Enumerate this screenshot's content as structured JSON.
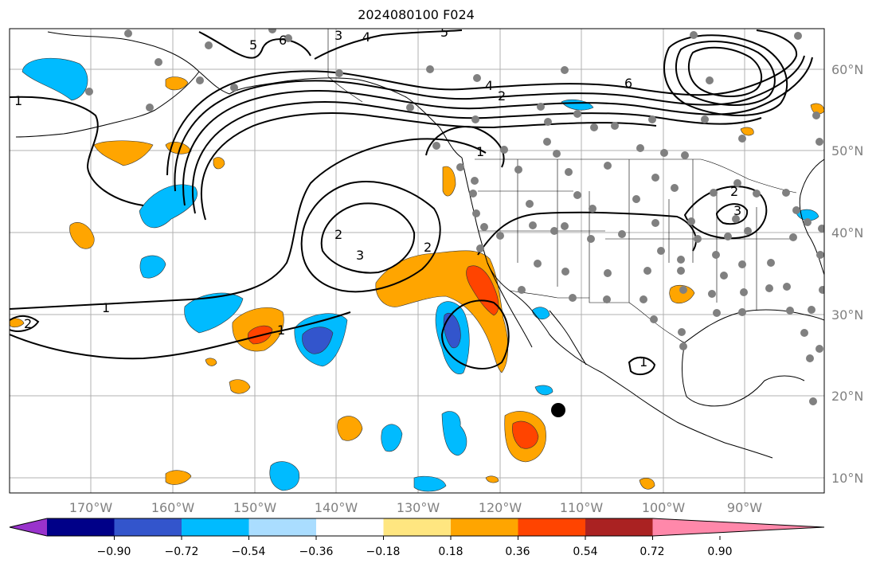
{
  "title": "2024080100 F024",
  "map": {
    "lon_labels": [
      "170°W",
      "160°W",
      "150°W",
      "140°W",
      "130°W",
      "120°W",
      "110°W",
      "100°W",
      "90°W"
    ],
    "lat_labels": [
      "60°N",
      "50°N",
      "40°N",
      "30°N",
      "20°N",
      "10°N"
    ],
    "contour_labels": [
      "1",
      "1",
      "1",
      "1",
      "1",
      "2",
      "2",
      "2",
      "2",
      "2",
      "3",
      "3",
      "3",
      "4",
      "4",
      "5",
      "5",
      "6",
      "6"
    ],
    "colorbar": {
      "ticks": [
        "−0.90",
        "−0.72",
        "−0.54",
        "−0.36",
        "−0.18",
        "0.18",
        "0.36",
        "0.54",
        "0.72",
        "0.90"
      ],
      "colors": [
        "#9933cc",
        "#000088",
        "#3355cc",
        "#00bbff",
        "#aaddff",
        "#ffffff",
        "#ffe680",
        "#ffa500",
        "#ff4400",
        "#aa2222",
        "#ff88aa"
      ]
    },
    "colors": {
      "neg_strong": "#3355cc",
      "neg": "#00bbff",
      "pos": "#ffa500",
      "pos_strong": "#ff4400",
      "station": "#808080",
      "grid": "#b0b0b0"
    }
  }
}
